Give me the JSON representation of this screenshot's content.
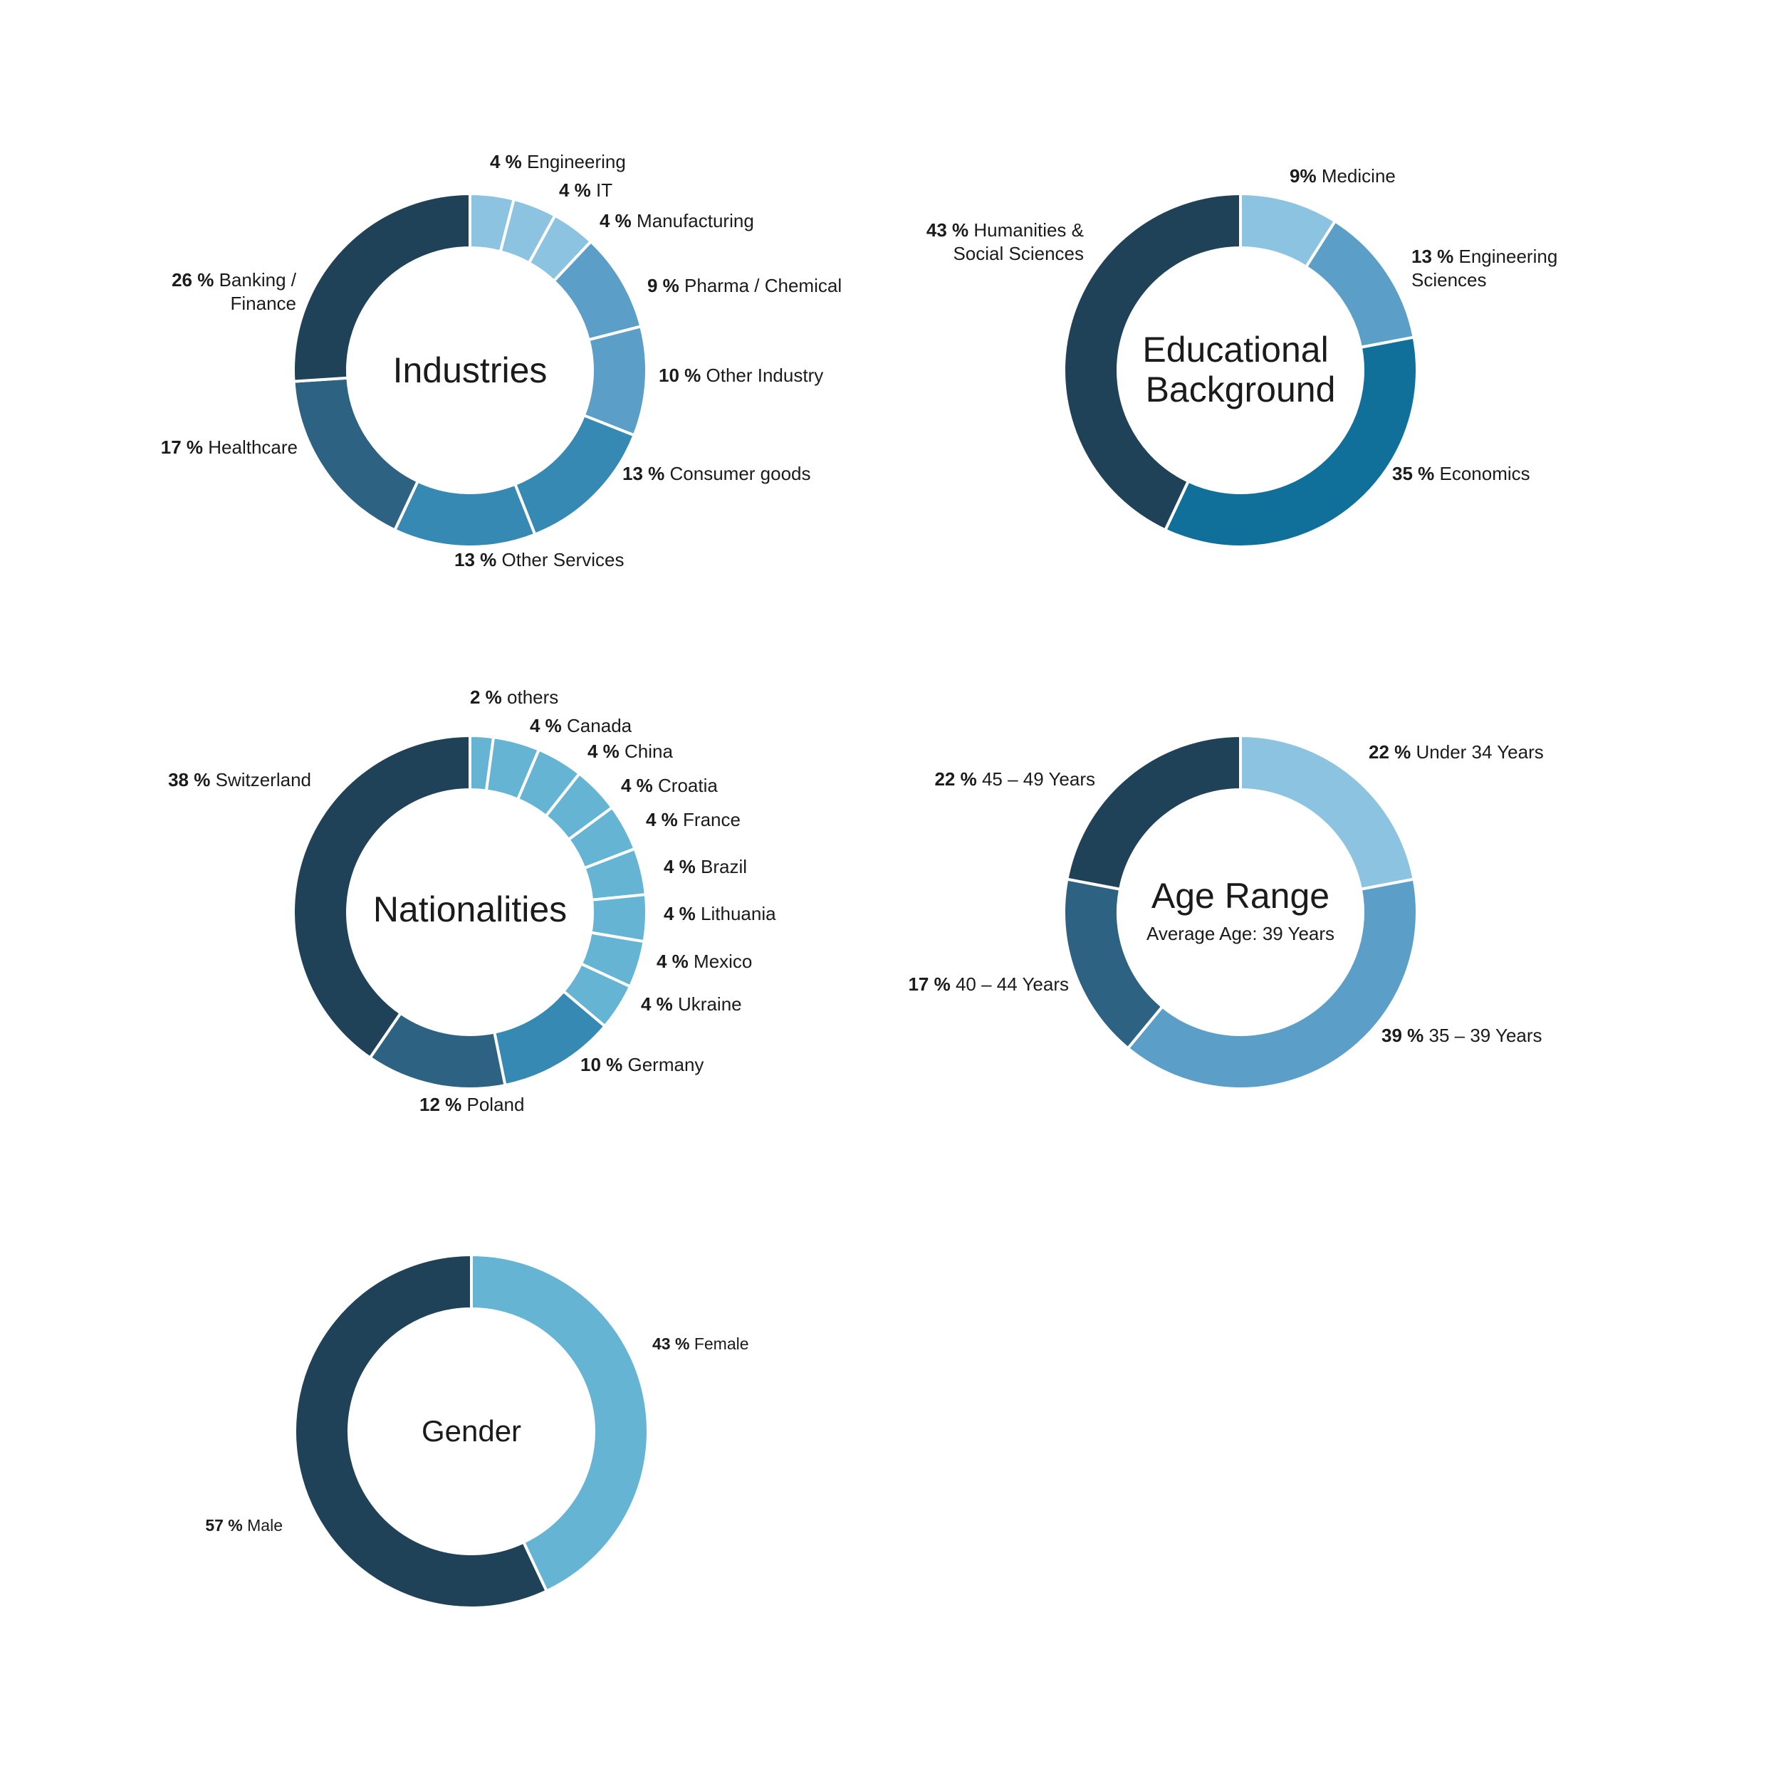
{
  "chart_data": [
    {
      "type": "pie",
      "title": "Industries",
      "subtitle": "",
      "categories": [
        "Engineering",
        "IT",
        "Manufacturing",
        "Pharma / Chemical",
        "Other Industry",
        "Consumer goods",
        "Other Services",
        "Healthcare",
        "Banking / Finance"
      ],
      "values": [
        4,
        4,
        4,
        9,
        10,
        13,
        13,
        17,
        26
      ],
      "colors": [
        "#8cc3e0",
        "#8cc3e0",
        "#8cc3e0",
        "#5b9ec7",
        "#5b9ec7",
        "#3689b2",
        "#3689b2",
        "#2e6282",
        "#1f4259"
      ],
      "slice_labels": [
        {
          "pct": "4 %",
          "lines": [
            "Engineering"
          ]
        },
        {
          "pct": "4 %",
          "lines": [
            "IT"
          ]
        },
        {
          "pct": "4 %",
          "lines": [
            "Manufacturing"
          ]
        },
        {
          "pct": "9 %",
          "lines": [
            "Pharma / Chemical"
          ]
        },
        {
          "pct": "10 %",
          "lines": [
            "Other Industry"
          ]
        },
        {
          "pct": "13 %",
          "lines": [
            "Consumer goods"
          ]
        },
        {
          "pct": "13 %",
          "lines": [
            "Other Services"
          ]
        },
        {
          "pct": "17 %",
          "lines": [
            "Healthcare"
          ]
        },
        {
          "pct": "26 %",
          "lines": [
            "Banking /",
            "Finance"
          ]
        }
      ]
    },
    {
      "type": "pie",
      "title": "Educational Background",
      "title_lines": [
        "Educational",
        "Background"
      ],
      "subtitle": "",
      "categories": [
        "Medicine",
        "Engineering Sciences",
        "Economics",
        "Humanities & Social Sciences"
      ],
      "values": [
        9,
        13,
        35,
        43
      ],
      "colors": [
        "#8cc3e0",
        "#5b9ec7",
        "#10709a",
        "#1f4259"
      ],
      "slice_labels": [
        {
          "pct": "9%",
          "lines": [
            "Medicine"
          ]
        },
        {
          "pct": "13 %",
          "lines": [
            "Engineering",
            "Sciences"
          ]
        },
        {
          "pct": "35 %",
          "lines": [
            "Economics"
          ]
        },
        {
          "pct": "43 %",
          "lines": [
            "Humanities &",
            "Social Sciences"
          ]
        }
      ]
    },
    {
      "type": "pie",
      "title": "Nationalities",
      "subtitle": "",
      "categories": [
        "others",
        "Canada",
        "China",
        "Croatia",
        "France",
        "Brazil",
        "Lithuania",
        "Mexico",
        "Ukraine",
        "Germany",
        "Poland",
        "Switzerland"
      ],
      "values": [
        2,
        4,
        4,
        4,
        4,
        4,
        4,
        4,
        4,
        10,
        12,
        38
      ],
      "colors": [
        "#65b4d4",
        "#65b4d4",
        "#65b4d4",
        "#65b4d4",
        "#65b4d4",
        "#65b4d4",
        "#65b4d4",
        "#65b4d4",
        "#65b4d4",
        "#3689b2",
        "#2e6282",
        "#1f4259"
      ],
      "slice_labels": [
        {
          "pct": "2 %",
          "lines": [
            "others"
          ]
        },
        {
          "pct": "4 %",
          "lines": [
            "Canada"
          ]
        },
        {
          "pct": "4 %",
          "lines": [
            "China"
          ]
        },
        {
          "pct": "4 %",
          "lines": [
            "Croatia"
          ]
        },
        {
          "pct": "4 %",
          "lines": [
            "France"
          ]
        },
        {
          "pct": "4 %",
          "lines": [
            "Brazil"
          ]
        },
        {
          "pct": "4 %",
          "lines": [
            "Lithuania"
          ]
        },
        {
          "pct": "4 %",
          "lines": [
            "Mexico"
          ]
        },
        {
          "pct": "4 %",
          "lines": [
            "Ukraine"
          ]
        },
        {
          "pct": "10 %",
          "lines": [
            "Germany"
          ]
        },
        {
          "pct": "12 %",
          "lines": [
            "Poland"
          ]
        },
        {
          "pct": "38 %",
          "lines": [
            "Switzerland"
          ]
        }
      ]
    },
    {
      "type": "pie",
      "title": "Age Range",
      "subtitle": "Average Age: 39 Years",
      "categories": [
        "Under 34 Years",
        "35 – 39 Years",
        "40 – 44 Years",
        "45 – 49 Years"
      ],
      "values": [
        22,
        39,
        17,
        22
      ],
      "colors": [
        "#8cc3e0",
        "#5b9ec7",
        "#2e6282",
        "#1f4259"
      ],
      "slice_labels": [
        {
          "pct": "22 %",
          "lines": [
            "Under 34 Years"
          ]
        },
        {
          "pct": "39 %",
          "lines": [
            "35 – 39 Years"
          ]
        },
        {
          "pct": "17 %",
          "lines": [
            "40 – 44 Years"
          ]
        },
        {
          "pct": "22 %",
          "lines": [
            "45 – 49 Years"
          ]
        }
      ]
    },
    {
      "type": "pie",
      "title": "Gender",
      "subtitle": "",
      "categories": [
        "Female",
        "Male"
      ],
      "values": [
        43,
        57
      ],
      "colors": [
        "#65b4d4",
        "#1f4259"
      ],
      "slice_labels": [
        {
          "pct": "43 %",
          "lines": [
            "Female"
          ]
        },
        {
          "pct": "57 %",
          "lines": [
            "Male"
          ]
        }
      ]
    }
  ]
}
